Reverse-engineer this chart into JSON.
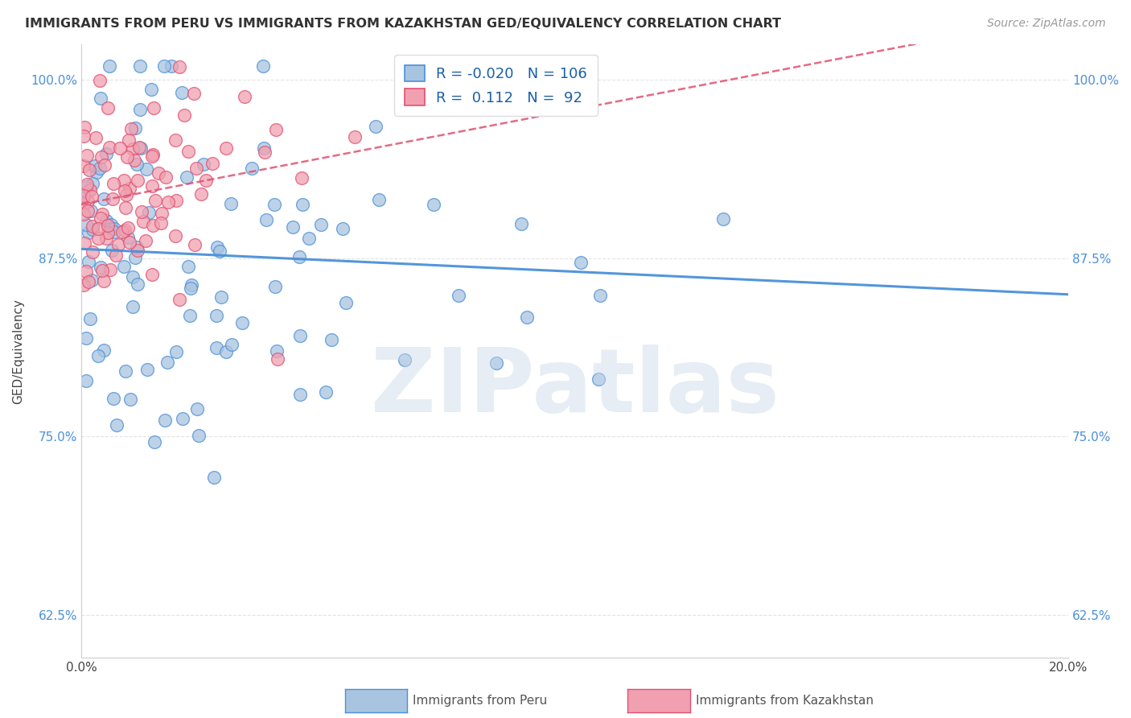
{
  "title": "IMMIGRANTS FROM PERU VS IMMIGRANTS FROM KAZAKHSTAN GED/EQUIVALENCY CORRELATION CHART",
  "source": "Source: ZipAtlas.com",
  "xlabel_peru": "Immigrants from Peru",
  "xlabel_kaz": "Immigrants from Kazakhstan",
  "ylabel": "GED/Equivalency",
  "xmin": 0.0,
  "xmax": 0.2,
  "ymin": 0.595,
  "ymax": 1.025,
  "yticks": [
    0.625,
    0.75,
    0.875,
    1.0
  ],
  "ytick_labels": [
    "62.5%",
    "75.0%",
    "87.5%",
    "100.0%"
  ],
  "xticks": [
    0.0,
    0.05,
    0.1,
    0.15,
    0.2
  ],
  "xtick_labels": [
    "0.0%",
    "",
    "",
    "",
    "20.0%"
  ],
  "R_peru": -0.02,
  "N_peru": 106,
  "R_kaz": 0.112,
  "N_kaz": 92,
  "color_peru": "#a8c4e0",
  "color_kaz": "#f0a0b0",
  "edge_color_peru": "#4a90d9",
  "edge_color_kaz": "#e05070",
  "trend_color_peru": "#4a90d9",
  "trend_color_kaz": "#e05070",
  "watermark": "ZIPatlas",
  "watermark_color": "#c8d8e8",
  "background_color": "#ffffff",
  "grid_color": "#e0e0e0"
}
